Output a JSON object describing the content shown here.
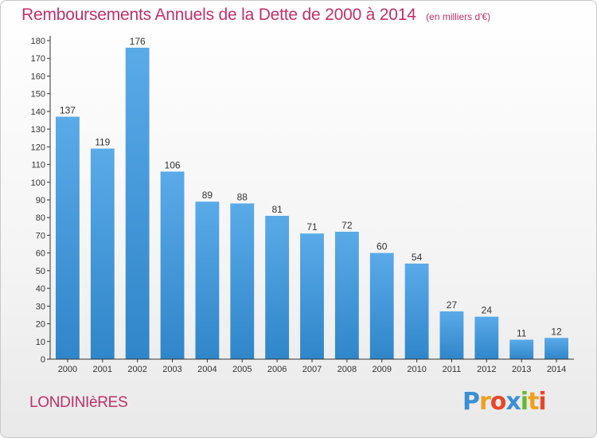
{
  "chart_data": {
    "type": "bar",
    "title": "Remboursements Annuels de la Dette de 2000 à 2014",
    "subtitle": "(en milliers d'€)",
    "xlabel": "",
    "ylabel": "",
    "categories": [
      "2000",
      "2001",
      "2002",
      "2003",
      "2004",
      "2005",
      "2006",
      "2007",
      "2008",
      "2009",
      "2010",
      "2011",
      "2012",
      "2013",
      "2014"
    ],
    "values": [
      137,
      119,
      176,
      106,
      89,
      88,
      81,
      71,
      72,
      60,
      54,
      27,
      24,
      11,
      12
    ],
    "ylim": [
      0,
      180
    ],
    "yticks": [
      0,
      10,
      20,
      30,
      40,
      50,
      60,
      70,
      80,
      90,
      100,
      110,
      120,
      130,
      140,
      150,
      160,
      170,
      180
    ],
    "grid": false,
    "bar_color": "#5aaae8",
    "bar_color_dark": "#2f86c9"
  },
  "footer": {
    "place": "LONDINIèRES",
    "logo_letters": [
      {
        "ch": "P",
        "color": "#3b8fd6"
      },
      {
        "ch": "r",
        "color": "#f0a020"
      },
      {
        "ch": "o",
        "color": "#e8462a"
      },
      {
        "ch": "x",
        "color": "#3b8fd6"
      },
      {
        "ch": "i",
        "color": "#6ab82e"
      },
      {
        "ch": "t",
        "color": "#f0a020"
      },
      {
        "ch": "i",
        "color": "#e8462a"
      }
    ]
  },
  "colors": {
    "accent": "#c0306a"
  }
}
